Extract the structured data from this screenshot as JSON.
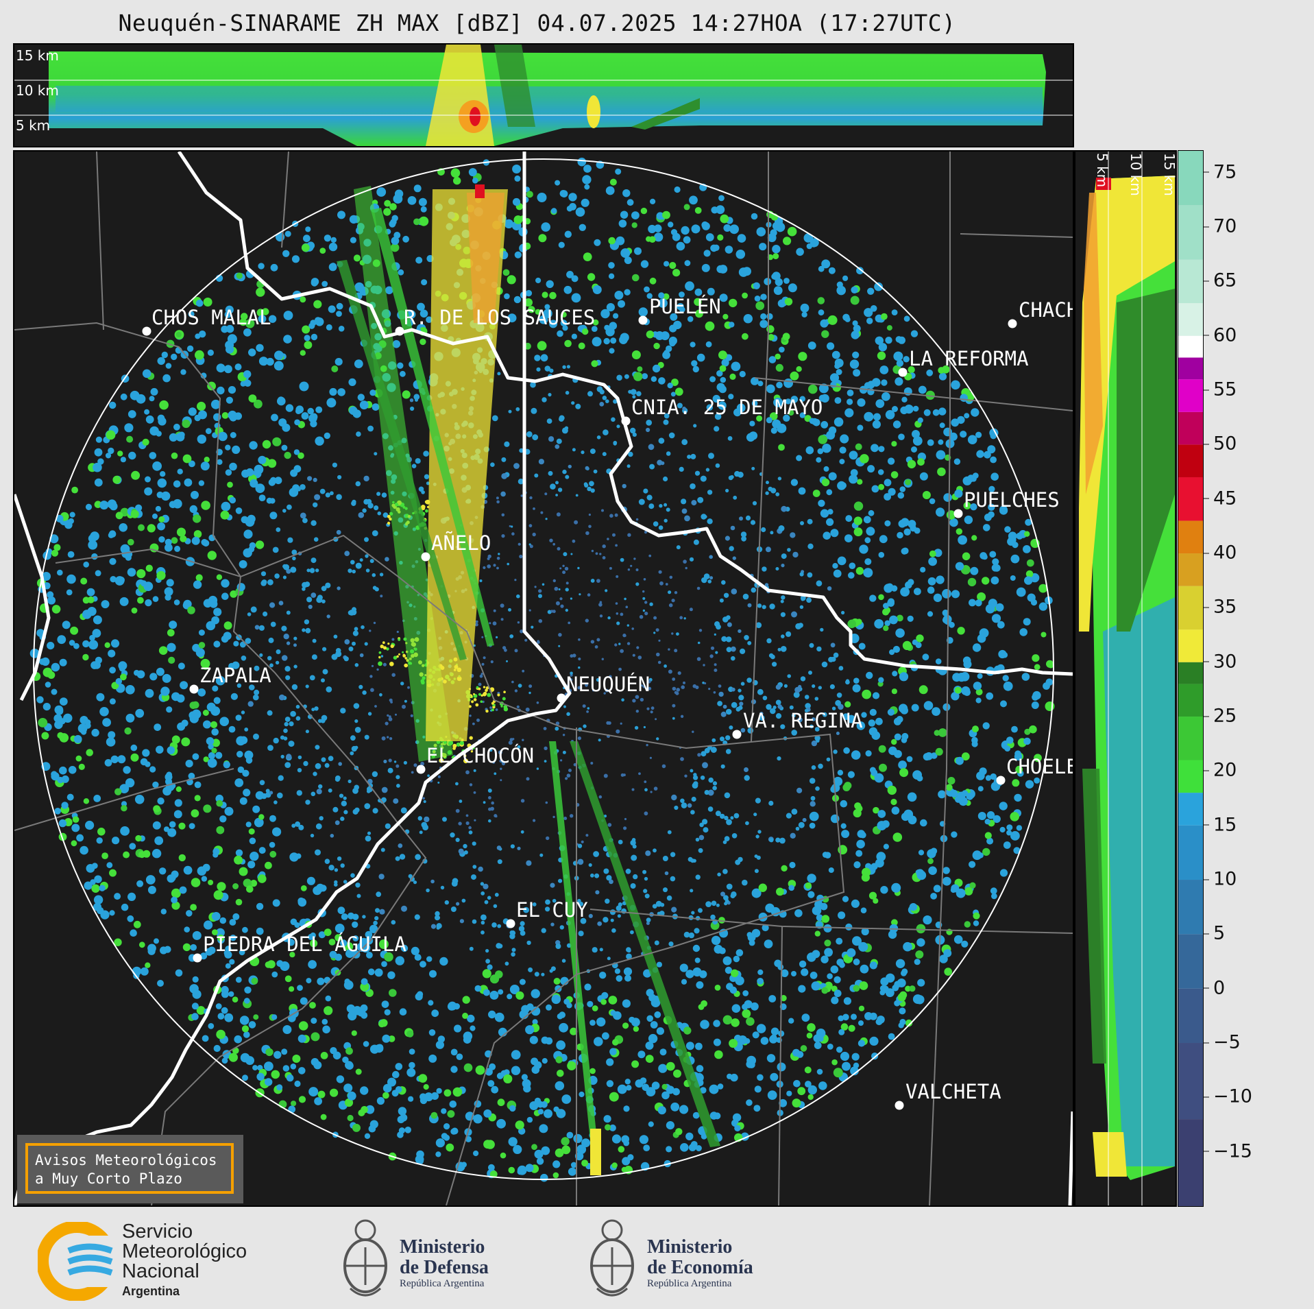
{
  "title": "Neuquén-SINARAME ZH MAX [dBZ] 04.07.2025 14:27HOA (17:27UTC)",
  "top_panel": {
    "height_labels": [
      "15 km",
      "10 km",
      "5 km"
    ]
  },
  "side_panel": {
    "height_labels": [
      "5 km",
      "10 km",
      "15 km"
    ]
  },
  "colorbar": {
    "ticks": [
      "75",
      "70",
      "65",
      "60",
      "55",
      "50",
      "45",
      "40",
      "35",
      "30",
      "25",
      "20",
      "15",
      "10",
      "5",
      "0",
      "−5",
      "−10",
      "−15"
    ],
    "min_dbz": -20,
    "max_dbz": 77
  },
  "range_ring": "white circle around radar",
  "cities": [
    {
      "name": "CHOS MALAL",
      "id": "chos-malal"
    },
    {
      "name": "R. DE LOS SAUCES",
      "id": "rincon-de-los-sauces"
    },
    {
      "name": "PUELÉN",
      "id": "puelen"
    },
    {
      "name": "CHACH",
      "id": "chacharramendi"
    },
    {
      "name": "LA REFORMA",
      "id": "la-reforma"
    },
    {
      "name": "CNIA. 25 DE MAYO",
      "id": "colonia-25-de-mayo"
    },
    {
      "name": "PUELCHES",
      "id": "puelches"
    },
    {
      "name": "AÑELO",
      "id": "anelo"
    },
    {
      "name": "ZAPALA",
      "id": "zapala"
    },
    {
      "name": "NEUQUÉN",
      "id": "neuquen"
    },
    {
      "name": "VA. REGINA",
      "id": "villa-regina"
    },
    {
      "name": "EL CHOCÓN",
      "id": "el-chocon"
    },
    {
      "name": "CHOELE",
      "id": "choele-choel"
    },
    {
      "name": "EL CUY",
      "id": "el-cuy"
    },
    {
      "name": "PIEDRA DEL ÁGUILA",
      "id": "piedra-del-aguila"
    },
    {
      "name": "VALCHETA",
      "id": "valcheta"
    }
  ],
  "notice": {
    "line1": "Avisos Meteorológicos",
    "line2": "a Muy Corto Plazo"
  },
  "logos": {
    "smn": {
      "line1": "Servicio",
      "line2": "Meteorológico",
      "line3": "Nacional",
      "country": "Argentina"
    },
    "defensa": {
      "line1": "Ministerio",
      "line2": "de Defensa",
      "sub": "República Argentina"
    },
    "economia": {
      "line1": "Ministerio",
      "line2": "de Economía",
      "sub": "República Argentina"
    }
  },
  "colors": {
    "background": "#1b1b1b",
    "page": "#e6e6e6",
    "notice_border": "#f5a000",
    "echo_low": "#2b9fd6",
    "echo_mid": "#45e03a",
    "echo_high": "#f0e637"
  }
}
